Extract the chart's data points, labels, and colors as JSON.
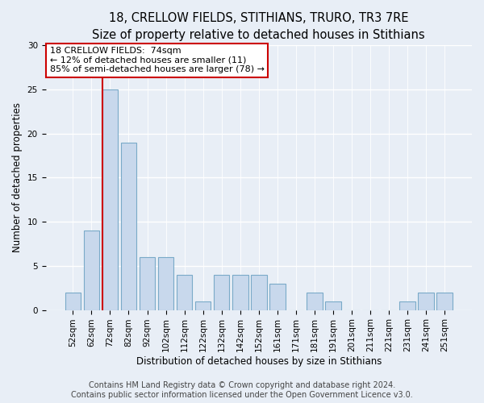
{
  "title": "18, CRELLOW FIELDS, STITHIANS, TRURO, TR3 7RE",
  "subtitle": "Size of property relative to detached houses in Stithians",
  "xlabel": "Distribution of detached houses by size in Stithians",
  "ylabel": "Number of detached properties",
  "categories": [
    "52sqm",
    "62sqm",
    "72sqm",
    "82sqm",
    "92sqm",
    "102sqm",
    "112sqm",
    "122sqm",
    "132sqm",
    "142sqm",
    "152sqm",
    "161sqm",
    "171sqm",
    "181sqm",
    "191sqm",
    "201sqm",
    "211sqm",
    "221sqm",
    "231sqm",
    "241sqm",
    "251sqm"
  ],
  "values": [
    2,
    9,
    25,
    19,
    6,
    6,
    4,
    1,
    4,
    4,
    4,
    3,
    0,
    2,
    1,
    0,
    0,
    0,
    1,
    2,
    2
  ],
  "bar_color": "#c8d8ec",
  "bar_edge_color": "#7aaac8",
  "red_line_color": "#cc0000",
  "red_line_x": 1.6,
  "annotation_line1": "18 CRELLOW FIELDS:  74sqm",
  "annotation_line2": "← 12% of detached houses are smaller (11)",
  "annotation_line3": "85% of semi-detached houses are larger (78) →",
  "ylim": [
    0,
    30
  ],
  "yticks": [
    0,
    5,
    10,
    15,
    20,
    25,
    30
  ],
  "footer_text": "Contains HM Land Registry data © Crown copyright and database right 2024.\nContains public sector information licensed under the Open Government Licence v3.0.",
  "bg_color": "#e8eef6",
  "title_fontsize": 10.5,
  "subtitle_fontsize": 9.5,
  "ylabel_fontsize": 8.5,
  "xlabel_fontsize": 8.5,
  "tick_fontsize": 7.5,
  "annot_fontsize": 8,
  "footer_fontsize": 7
}
